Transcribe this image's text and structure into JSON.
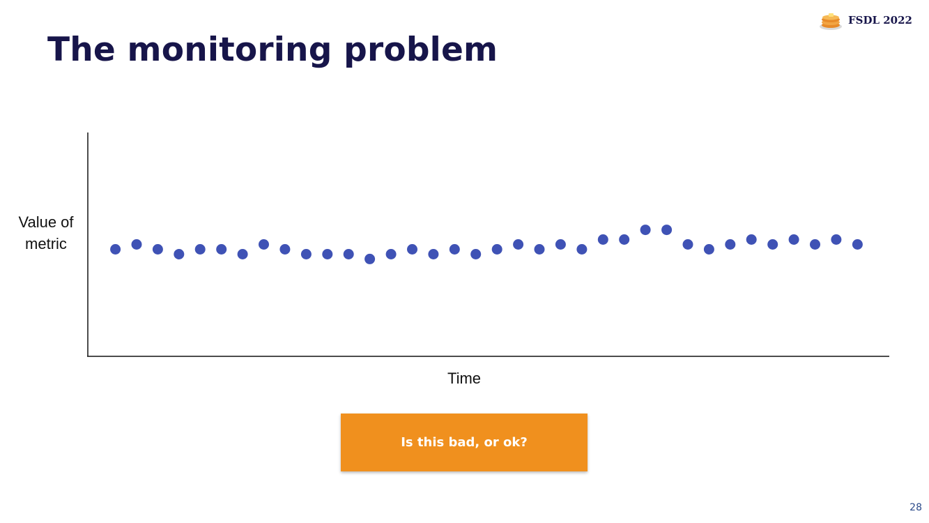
{
  "slide": {
    "title": "The monitoring problem",
    "brand_label": "FSDL 2022",
    "brand_icon": "pancake-stack-icon",
    "callout_text": "Is this bad, or ok?",
    "callout_color": "#f0901e",
    "page_number": "28"
  },
  "chart_data": {
    "type": "scatter",
    "title": "",
    "xlabel": "Time",
    "ylabel_lines": [
      "Value of",
      "metric"
    ],
    "x": [
      1,
      2,
      3,
      4,
      5,
      6,
      7,
      8,
      9,
      10,
      11,
      12,
      13,
      14,
      15,
      16,
      17,
      18,
      19,
      20,
      21,
      22,
      23,
      24,
      25,
      26,
      27,
      28,
      29,
      30,
      31,
      32,
      33,
      34,
      35,
      36
    ],
    "y": [
      0,
      1,
      0,
      -1,
      0,
      0,
      -1,
      1,
      0,
      -1,
      -1,
      -1,
      -2,
      -1,
      0,
      -1,
      0,
      -1,
      0,
      1,
      0,
      1,
      0,
      2,
      2,
      4,
      4,
      1,
      0,
      1,
      2,
      1,
      2,
      1,
      2,
      1
    ],
    "xlim": [
      -0.3,
      37.5
    ],
    "ylim": [
      -22,
      24
    ],
    "axis_ticks": false,
    "grid": false,
    "point_color": "#3f52b5"
  }
}
